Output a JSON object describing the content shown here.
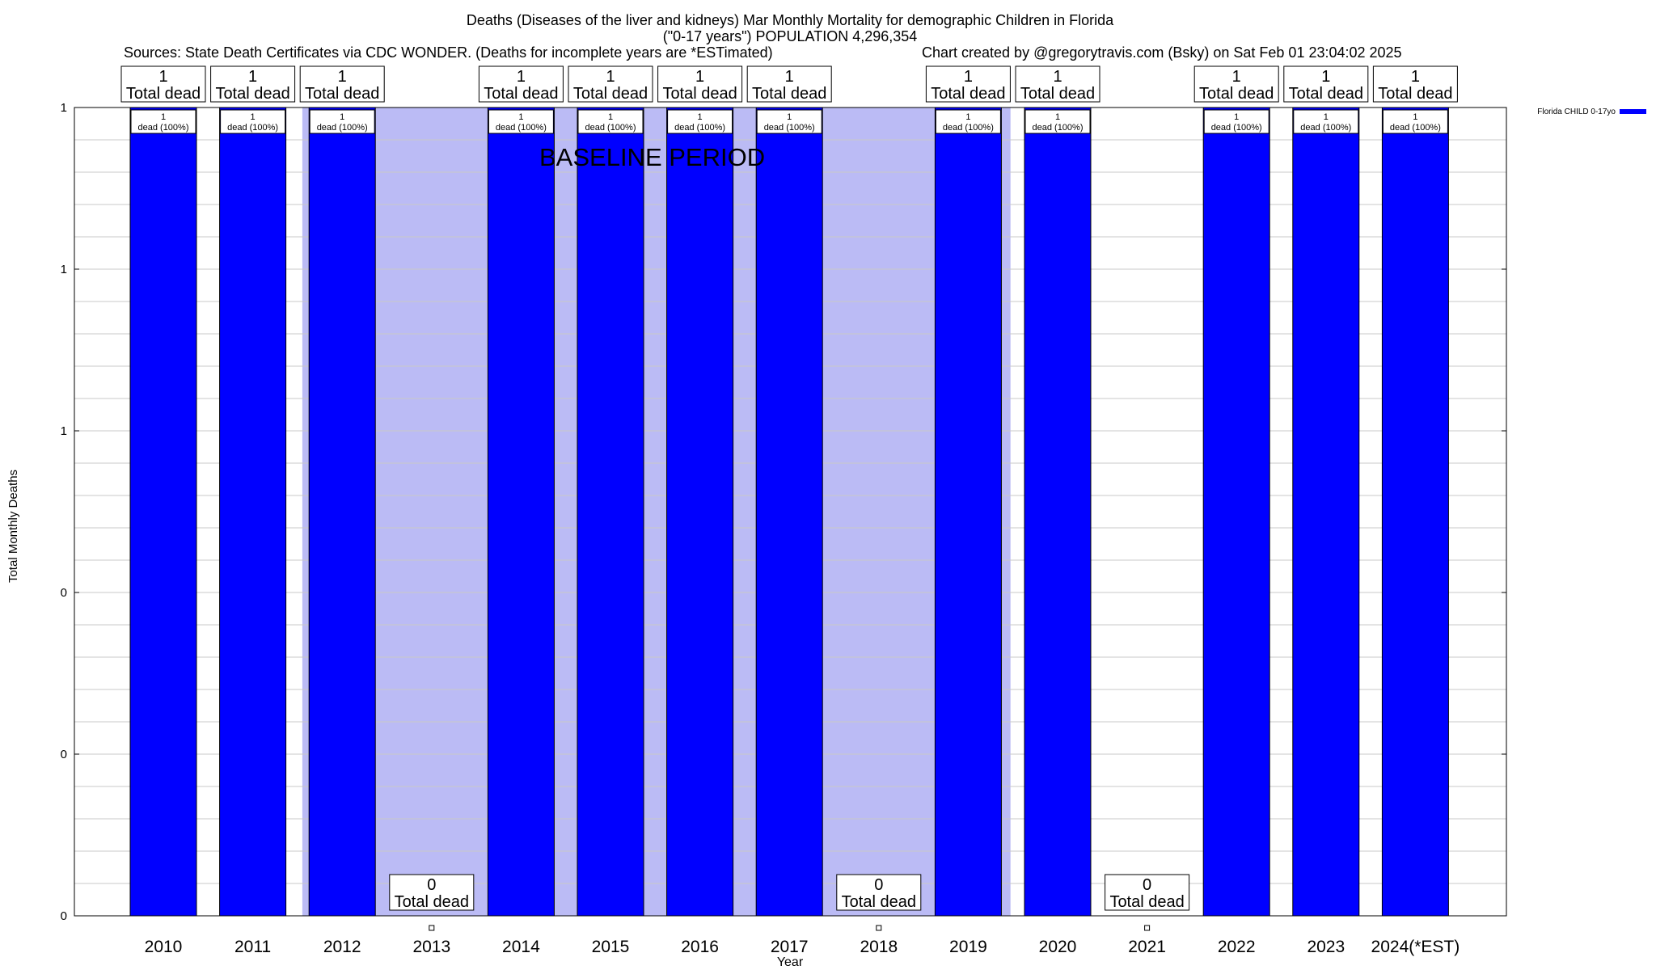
{
  "chart_data": {
    "type": "bar",
    "title_line1": "Deaths (Diseases of the liver and kidneys) Mar Monthly Mortality for demographic Children in Florida",
    "title_line2": "(\"0-17 years\") POPULATION 4,296,354",
    "subtitle_left": "Sources: State Death Certificates via CDC WONDER. (Deaths for incomplete years are *ESTimated)",
    "subtitle_right": "Chart created by @gregorytravis.com (Bsky) on Sat Feb 01 23:04:02 2025",
    "xlabel": "Year",
    "ylabel": "Total Monthly Deaths",
    "baseline_label": "BASELINE PERIOD",
    "baseline_range": [
      "2012",
      "2019"
    ],
    "categories": [
      "2010",
      "2011",
      "2012",
      "2013",
      "2014",
      "2015",
      "2016",
      "2017",
      "2018",
      "2019",
      "2020",
      "2021",
      "2022",
      "2023",
      "2024(*EST)"
    ],
    "series": [
      {
        "name": "Florida CHILD 0-17yo",
        "values": [
          1,
          1,
          1,
          0,
          1,
          1,
          1,
          1,
          0,
          1,
          1,
          0,
          1,
          1,
          1
        ]
      }
    ],
    "total_labels": [
      [
        "1",
        "Total dead"
      ],
      [
        "1",
        "Total dead"
      ],
      [
        "1",
        "Total dead"
      ],
      [
        "0",
        "Total dead"
      ],
      [
        "1",
        "Total dead"
      ],
      [
        "1",
        "Total dead"
      ],
      [
        "1",
        "Total dead"
      ],
      [
        "1",
        "Total dead"
      ],
      [
        "0",
        "Total dead"
      ],
      [
        "1",
        "Total dead"
      ],
      [
        "1",
        "Total dead"
      ],
      [
        "0",
        "Total dead"
      ],
      [
        "1",
        "Total dead"
      ],
      [
        "1",
        "Total dead"
      ],
      [
        "1",
        "Total dead"
      ]
    ],
    "bar_labels": [
      [
        "1",
        "dead (100%)"
      ],
      [
        "1",
        "dead (100%)"
      ],
      [
        "1",
        "dead (100%)"
      ],
      null,
      [
        "1",
        "dead (100%)"
      ],
      [
        "1",
        "dead (100%)"
      ],
      [
        "1",
        "dead (100%)"
      ],
      [
        "1",
        "dead (100%)"
      ],
      null,
      [
        "1",
        "dead (100%)"
      ],
      [
        "1",
        "dead (100%)"
      ],
      null,
      [
        "1",
        "dead (100%)"
      ],
      [
        "1",
        "dead (100%)"
      ],
      [
        "1",
        "dead (100%)"
      ]
    ],
    "yticks": [
      {
        "value": 0,
        "label": "0"
      },
      {
        "value": 0.2,
        "label": "0"
      },
      {
        "value": 0.4,
        "label": "0"
      },
      {
        "value": 0.6,
        "label": "1"
      },
      {
        "value": 0.8,
        "label": "1"
      },
      {
        "value": 1.0,
        "label": "1"
      }
    ],
    "ylim": [
      0,
      1
    ],
    "grid": true,
    "legend_position": "top-right",
    "colors": {
      "bar": "#0000ff",
      "baseline": "#bbbbf5",
      "grid": "#c8c8c8"
    }
  }
}
